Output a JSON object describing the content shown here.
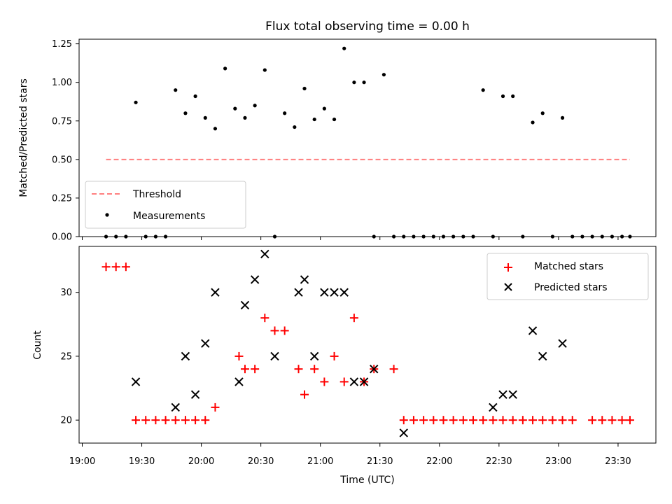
{
  "chart_data": [
    {
      "type": "scatter",
      "title": "Flux total observing time = 0.00 h",
      "xlabel": "",
      "ylabel": "Matched/Predicted stars",
      "ylim": [
        0,
        1.28
      ],
      "yticks": [
        "0.00",
        "0.25",
        "0.50",
        "0.75",
        "1.00",
        "1.25"
      ],
      "legend_position": "lower-left",
      "series": [
        {
          "name": "Threshold",
          "style": "dashed-line",
          "color": "#ff7f7f",
          "x": [
            "19:12",
            "23:36"
          ],
          "y": [
            0.5,
            0.5
          ]
        },
        {
          "name": "Measurements",
          "style": "dot",
          "color": "#000000",
          "x": [
            "19:12",
            "19:17",
            "19:22",
            "19:27",
            "19:32",
            "19:37",
            "19:42",
            "19:47",
            "19:52",
            "19:57",
            "20:02",
            "20:07",
            "20:12",
            "20:17",
            "20:22",
            "20:27",
            "20:32",
            "20:37",
            "20:42",
            "20:47",
            "20:52",
            "20:57",
            "21:02",
            "21:07",
            "21:12",
            "21:17",
            "21:22",
            "21:27",
            "21:32",
            "21:37",
            "21:42",
            "21:47",
            "21:52",
            "21:57",
            "22:02",
            "22:07",
            "22:12",
            "22:17",
            "22:22",
            "22:27",
            "22:32",
            "22:37",
            "22:42",
            "22:47",
            "22:52",
            "22:57",
            "23:02",
            "23:07",
            "23:12",
            "23:17",
            "23:22",
            "23:27",
            "23:32",
            "23:36"
          ],
          "y": [
            0,
            0,
            0,
            0.87,
            0,
            0,
            0,
            0.95,
            0.8,
            0.91,
            0.77,
            0.7,
            1.09,
            0.83,
            0.77,
            0.85,
            1.08,
            0,
            0.8,
            0.71,
            0.96,
            0.76,
            0.83,
            0.76,
            1.22,
            1.0,
            1.0,
            0,
            1.05,
            0,
            0,
            0,
            0,
            0,
            0,
            0,
            0,
            0,
            0.95,
            0,
            0.91,
            0.91,
            0,
            0.74,
            0.8,
            0,
            0.77,
            0,
            0,
            0,
            0,
            0,
            0,
            0
          ]
        }
      ]
    },
    {
      "type": "scatter",
      "title": "",
      "xlabel": "Time (UTC)",
      "ylabel": "Count",
      "ylim": [
        18.2,
        33.6
      ],
      "yticks": [
        "20",
        "25",
        "30"
      ],
      "xticks": [
        "19:00",
        "19:30",
        "20:00",
        "20:30",
        "21:00",
        "21:30",
        "22:00",
        "22:30",
        "23:00",
        "23:30"
      ],
      "legend_position": "upper-right",
      "series": [
        {
          "name": "Matched stars",
          "style": "plus",
          "color": "#ff0000",
          "x": [
            "19:12",
            "19:17",
            "19:22",
            "19:27",
            "19:32",
            "19:37",
            "19:42",
            "19:47",
            "19:52",
            "19:57",
            "20:02",
            "20:07",
            "20:19",
            "20:22",
            "20:27",
            "20:32",
            "20:37",
            "20:42",
            "20:49",
            "20:52",
            "20:57",
            "21:02",
            "21:07",
            "21:12",
            "21:17",
            "21:22",
            "21:27",
            "21:37",
            "21:42",
            "21:47",
            "21:52",
            "21:57",
            "22:02",
            "22:07",
            "22:12",
            "22:17",
            "22:22",
            "22:27",
            "22:32",
            "22:37",
            "22:42",
            "22:47",
            "22:52",
            "22:57",
            "23:02",
            "23:07",
            "23:17",
            "23:22",
            "23:27",
            "23:32",
            "23:36"
          ],
          "y": [
            32,
            32,
            32,
            20,
            20,
            20,
            20,
            20,
            20,
            20,
            20,
            21,
            25,
            24,
            24,
            28,
            27,
            27,
            24,
            22,
            24,
            23,
            25,
            23,
            28,
            23,
            24,
            24,
            20,
            20,
            20,
            20,
            20,
            20,
            20,
            20,
            20,
            20,
            20,
            20,
            20,
            20,
            20,
            20,
            20,
            20,
            20,
            20,
            20,
            20,
            20
          ]
        },
        {
          "name": "Predicted stars",
          "style": "x",
          "color": "#000000",
          "x": [
            "19:27",
            "19:47",
            "19:52",
            "19:57",
            "20:02",
            "20:07",
            "20:19",
            "20:22",
            "20:27",
            "20:32",
            "20:37",
            "20:49",
            "20:52",
            "20:57",
            "21:02",
            "21:07",
            "21:12",
            "21:17",
            "21:22",
            "21:27",
            "21:42",
            "22:27",
            "22:32",
            "22:37",
            "22:47",
            "22:52",
            "23:02"
          ],
          "y": [
            23,
            21,
            25,
            22,
            26,
            30,
            23,
            29,
            31,
            33,
            25,
            30,
            31,
            25,
            30,
            30,
            30,
            23,
            23,
            24,
            19,
            21,
            22,
            22,
            27,
            25,
            26
          ]
        }
      ]
    }
  ]
}
